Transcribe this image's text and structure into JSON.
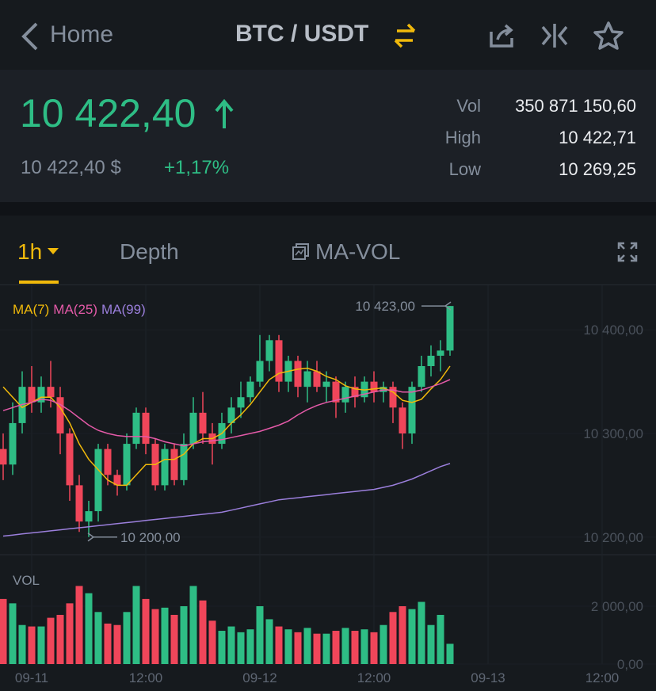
{
  "header": {
    "back": "Home",
    "pair": "BTC / USDT"
  },
  "ticker": {
    "price": "10 422,40",
    "price_usd": "10 422,40 $",
    "change": "+1,17%",
    "stats": [
      {
        "label": "Vol",
        "value": "350 871 150,60"
      },
      {
        "label": "High",
        "value": "10 422,71"
      },
      {
        "label": "Low",
        "value": "10 269,25"
      }
    ]
  },
  "tabs": {
    "interval": "1h",
    "depth": "Depth",
    "indicator": "MA-VOL"
  },
  "chart_data": {
    "type": "candlestick",
    "categories": [
      null,
      null,
      null,
      "09-11",
      null,
      null,
      null,
      null,
      null,
      null,
      null,
      null,
      null,
      null,
      null,
      "12:00",
      null,
      null,
      null,
      null,
      null,
      null,
      null,
      null,
      null,
      null,
      null,
      "09-12",
      null,
      null,
      null,
      null,
      null,
      null,
      null,
      null,
      null,
      null,
      null,
      "12:00",
      null,
      null,
      null,
      null,
      null,
      null,
      null,
      null,
      null,
      null,
      null,
      "09-13",
      null,
      null,
      null,
      null,
      null,
      null,
      null,
      null,
      null,
      null,
      null,
      "12:00",
      null,
      null,
      null,
      null
    ],
    "open": [
      10285,
      10270,
      10310,
      10345,
      10330,
      10345,
      10335,
      10300,
      10250,
      10215,
      10225,
      10285,
      10260,
      10250,
      10290,
      10320,
      10290,
      10250,
      10285,
      10255,
      10290,
      10320,
      10300,
      10290,
      10310,
      10325,
      10335,
      10350,
      10370,
      10390,
      10350,
      10370,
      10345,
      10360,
      10345,
      10350,
      10330,
      10345,
      10335,
      10350,
      10340,
      10345,
      10325,
      10300,
      10345,
      10365,
      10375,
      10380,
      null,
      null,
      null,
      null,
      null,
      null,
      null,
      null,
      null,
      null,
      null,
      null,
      null,
      null,
      null,
      null,
      null,
      null,
      null,
      null
    ],
    "high": [
      10300,
      10330,
      10360,
      10365,
      10355,
      10370,
      10345,
      10305,
      10260,
      10235,
      10290,
      10290,
      10265,
      10300,
      10325,
      10325,
      10295,
      10290,
      10290,
      10300,
      10335,
      10340,
      10310,
      10320,
      10335,
      10350,
      10355,
      10395,
      10395,
      10395,
      10375,
      10375,
      10370,
      10370,
      10360,
      10355,
      10350,
      10355,
      10355,
      10360,
      10350,
      10350,
      10330,
      10350,
      10375,
      10385,
      10390,
      10423,
      null,
      null,
      null,
      null,
      null,
      null,
      null,
      null,
      null,
      null,
      null,
      null,
      null,
      null,
      null,
      null,
      null,
      null,
      null,
      null
    ],
    "low": [
      10255,
      10260,
      10300,
      10320,
      10320,
      10325,
      10280,
      10235,
      10205,
      10200,
      10215,
      10250,
      10240,
      10245,
      10285,
      10280,
      10245,
      10245,
      10250,
      10250,
      10285,
      10290,
      10270,
      10285,
      10300,
      10315,
      10330,
      10345,
      10360,
      10340,
      10340,
      10335,
      10330,
      10340,
      10330,
      10315,
      10320,
      10325,
      10330,
      10330,
      10330,
      10310,
      10285,
      10290,
      10340,
      10355,
      10360,
      10375,
      null,
      null,
      null,
      null,
      null,
      null,
      null,
      null,
      null,
      null,
      null,
      null,
      null,
      null,
      null,
      null,
      null,
      null,
      null,
      null
    ],
    "close": [
      10270,
      10310,
      10345,
      10330,
      10345,
      10335,
      10300,
      10250,
      10215,
      10225,
      10285,
      10260,
      10250,
      10290,
      10320,
      10290,
      10250,
      10285,
      10255,
      10290,
      10320,
      10300,
      10290,
      10310,
      10325,
      10335,
      10350,
      10370,
      10390,
      10350,
      10370,
      10345,
      10360,
      10345,
      10350,
      10330,
      10345,
      10335,
      10350,
      10340,
      10345,
      10325,
      10300,
      10345,
      10365,
      10375,
      10380,
      10423,
      null,
      null,
      null,
      null,
      null,
      null,
      null,
      null,
      null,
      null,
      null,
      null,
      null,
      null,
      null,
      null,
      null,
      null,
      null,
      null
    ],
    "up_color": "#2ebd85",
    "down_color": "#f0465a",
    "ylim": [
      10183,
      10443
    ],
    "yticks": [
      {
        "value": 10200,
        "label": "10 200,00"
      },
      {
        "value": 10300,
        "label": "10 300,00"
      },
      {
        "value": 10400,
        "label": "10 400,00"
      }
    ],
    "annotations": [
      {
        "value": 10423,
        "label": "10 423,00"
      },
      {
        "value": 10200,
        "label": "10 200,00"
      }
    ],
    "ma_series": [
      {
        "name": "MA(7)",
        "color": "#f0b90b",
        "values": [
          10345,
          10335,
          10325,
          10330,
          10335,
          10335,
          10325,
          10310,
          10290,
          10275,
          10265,
          10255,
          10250,
          10250,
          10260,
          10270,
          10270,
          10275,
          10275,
          10280,
          10290,
          10295,
          10295,
          10300,
          10310,
          10318,
          10328,
          10340,
          10352,
          10358,
          10360,
          10362,
          10363,
          10360,
          10355,
          10352,
          10346,
          10343,
          10342,
          10343,
          10344,
          10340,
          10332,
          10330,
          10333,
          10343,
          10352,
          10365,
          null,
          null,
          null,
          null,
          null,
          null,
          null,
          null,
          null,
          null,
          null,
          null,
          null,
          null,
          null,
          null,
          null,
          null,
          null,
          null
        ]
      },
      {
        "name": "MA(25)",
        "color": "#e45aa8",
        "values": [
          10322,
          10325,
          10328,
          10330,
          10333,
          10332,
          10328,
          10322,
          10315,
          10308,
          10303,
          10300,
          10298,
          10297,
          10297,
          10297,
          10295,
          10292,
          10290,
          10288,
          10290,
          10292,
          10293,
          10294,
          10296,
          10298,
          10300,
          10302,
          10305,
          10308,
          10312,
          10318,
          10323,
          10327,
          10330,
          10332,
          10334,
          10336,
          10338,
          10340,
          10342,
          10342,
          10340,
          10340,
          10342,
          10345,
          10348,
          10352,
          null,
          null,
          null,
          null,
          null,
          null,
          null,
          null,
          null,
          null,
          null,
          null,
          null,
          null,
          null,
          null,
          null,
          null,
          null,
          null
        ]
      },
      {
        "name": "MA(99)",
        "color": "#9b7fdc",
        "values": [
          10201,
          10202,
          10203,
          10204,
          10205,
          10206,
          10207,
          10208,
          10209,
          10210,
          10211,
          10212,
          10213,
          10214,
          10215,
          10216,
          10217,
          10218,
          10219,
          10220,
          10221,
          10222,
          10223,
          10224,
          10226,
          10228,
          10230,
          10232,
          10234,
          10236,
          10237,
          10238,
          10239,
          10240,
          10241,
          10242,
          10243,
          10244,
          10245,
          10246,
          10248,
          10250,
          10253,
          10256,
          10260,
          10264,
          10268,
          10271,
          null,
          null,
          null,
          null,
          null,
          null,
          null,
          null,
          null,
          null,
          null,
          null,
          null,
          null,
          null,
          null,
          null,
          null,
          null,
          null
        ]
      }
    ],
    "volume": {
      "title": "VOL",
      "values": [
        2250,
        2100,
        1350,
        1300,
        1300,
        1600,
        1700,
        2100,
        2700,
        2450,
        1800,
        1400,
        1350,
        1800,
        2700,
        2250,
        1900,
        1950,
        1700,
        2000,
        2700,
        2200,
        1500,
        1150,
        1300,
        1100,
        1200,
        2000,
        1550,
        1300,
        1200,
        1100,
        1250,
        1050,
        1050,
        1150,
        1250,
        1150,
        1200,
        1100,
        1350,
        1800,
        2000,
        1900,
        2150,
        1350,
        1700,
        700,
        null,
        null,
        null,
        null,
        null,
        null,
        null,
        null,
        null,
        null,
        null,
        null,
        null,
        null,
        null,
        null,
        null,
        null,
        null,
        null
      ],
      "ylim": [
        0,
        3288
      ],
      "yticks": [
        {
          "value": 0,
          "label": "0,00"
        },
        {
          "value": 2000,
          "label": "2 000,00"
        }
      ]
    }
  }
}
